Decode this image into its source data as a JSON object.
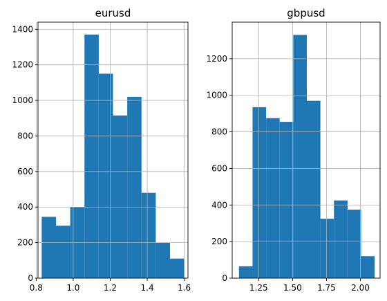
{
  "chart_data": [
    {
      "type": "bar",
      "title": "eurusd",
      "xlabel": "",
      "ylabel": "",
      "grid": true,
      "xlim": [
        0.81,
        1.62
      ],
      "ylim": [
        0,
        1440
      ],
      "xticks": [
        0.8,
        1.0,
        1.2,
        1.4,
        1.6
      ],
      "xtick_labels": [
        "0.8",
        "1.0",
        "1.2",
        "1.4",
        "1.6"
      ],
      "yticks": [
        0,
        200,
        400,
        600,
        800,
        1000,
        1200,
        1400
      ],
      "ytick_labels": [
        "0",
        "200",
        "400",
        "600",
        "800",
        "1000",
        "1200",
        "1400"
      ],
      "bin_edges": [
        0.83,
        0.907,
        0.984,
        1.061,
        1.138,
        1.215,
        1.292,
        1.369,
        1.446,
        1.523,
        1.6
      ],
      "values": [
        345,
        295,
        400,
        1370,
        1150,
        915,
        1020,
        480,
        200,
        110
      ],
      "color": "#1f77b4"
    },
    {
      "type": "bar",
      "title": "gbpusd",
      "xlabel": "",
      "ylabel": "",
      "grid": true,
      "xlim": [
        1.055,
        2.145
      ],
      "ylim": [
        0,
        1400
      ],
      "xticks": [
        1.25,
        1.5,
        1.75,
        2.0
      ],
      "xtick_labels": [
        "1.25",
        "1.50",
        "1.75",
        "2.00"
      ],
      "yticks": [
        0,
        200,
        400,
        600,
        800,
        1000,
        1200
      ],
      "ytick_labels": [
        "0",
        "200",
        "400",
        "600",
        "800",
        "1000",
        "1200"
      ],
      "bin_edges": [
        1.105,
        1.205,
        1.305,
        1.405,
        1.505,
        1.605,
        1.705,
        1.805,
        1.905,
        2.005,
        2.105
      ],
      "values": [
        65,
        935,
        875,
        855,
        1330,
        970,
        325,
        425,
        375,
        120
      ],
      "color": "#1f77b4"
    }
  ]
}
